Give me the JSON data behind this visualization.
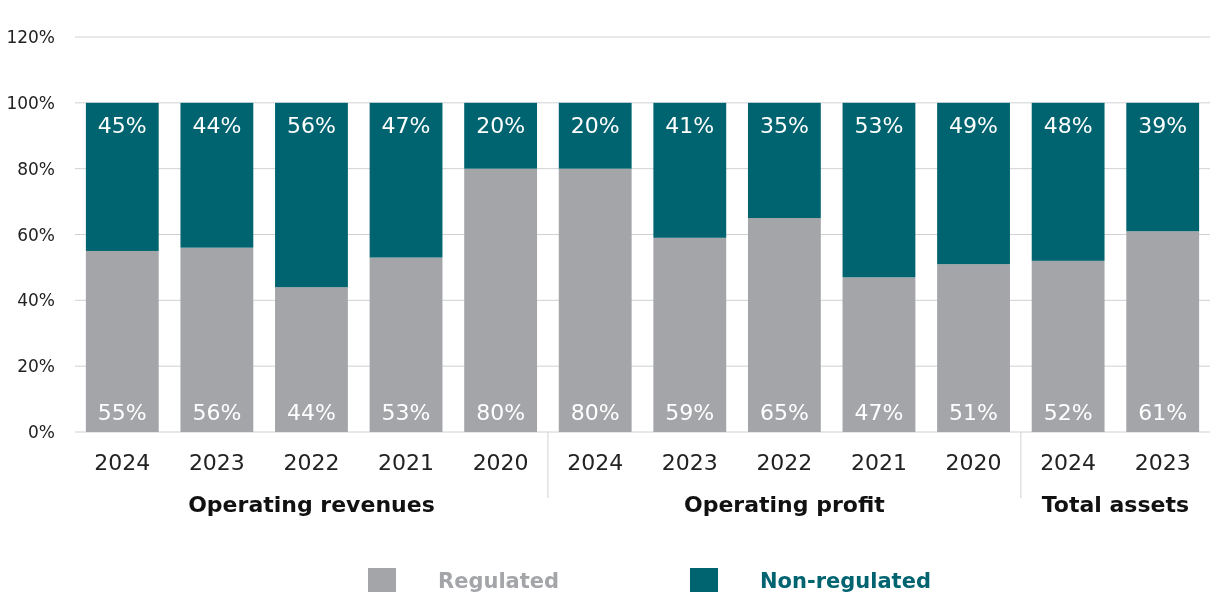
{
  "chart_data": [
    {
      "type": "bar",
      "stacked": true,
      "xlabel": "Operating revenues",
      "categories": [
        "2024",
        "2023",
        "2022",
        "2021",
        "2020"
      ],
      "ylim": [
        0,
        120
      ],
      "yticks": [
        {
          "value": 0,
          "label": "0%"
        },
        {
          "value": 20,
          "label": "20%"
        },
        {
          "value": 40,
          "label": "40%"
        },
        {
          "value": 60,
          "label": "60%"
        },
        {
          "value": 80,
          "label": "80%"
        },
        {
          "value": 100,
          "label": "100%"
        },
        {
          "value": 120,
          "label": "120%"
        }
      ],
      "grid": "y",
      "legend": "bottom",
      "series": [
        {
          "name": "Regulated",
          "color": "#a3a5a8",
          "values": [
            55,
            56,
            44,
            53,
            80
          ],
          "value_labels": [
            "55%",
            "56%",
            "44%",
            "53%",
            "80%"
          ]
        },
        {
          "name": "Non-regulated",
          "color": "#006470",
          "values": [
            45,
            44,
            56,
            47,
            20
          ],
          "value_labels": [
            "45%",
            "44%",
            "56%",
            "47%",
            "20%"
          ]
        }
      ]
    },
    {
      "type": "bar",
      "stacked": true,
      "xlabel": "Operating profit",
      "categories": [
        "2024",
        "2023",
        "2022",
        "2021",
        "2020"
      ],
      "ylim": [
        0,
        120
      ],
      "yticks": [
        0,
        20,
        40,
        60,
        80,
        100,
        120
      ],
      "grid": "y",
      "tick_labels": "x",
      "series": [
        {
          "color": "#a3a5a8",
          "values": [
            80,
            59,
            65,
            47,
            51
          ],
          "value_labels": [
            "80%",
            "59%",
            "65%",
            "47%",
            "51%"
          ]
        },
        {
          "color": "#006470",
          "values": [
            20,
            41,
            35,
            53,
            49
          ],
          "value_labels": [
            "20%",
            "41%",
            "35%",
            "53%",
            "49%"
          ]
        }
      ]
    },
    {
      "type": "bar",
      "stacked": true,
      "xlabel": "Total assets",
      "categories": [
        "2024",
        "2023"
      ],
      "ylim": [
        0,
        120
      ],
      "yticks": [
        0,
        20,
        40,
        60,
        80,
        100,
        120
      ],
      "grid": "y",
      "tick_labels": "x",
      "series": [
        {
          "color": "#a3a5a8",
          "values": [
            52,
            61
          ],
          "value_labels": [
            "52%",
            "61%"
          ]
        },
        {
          "color": "#006470",
          "values": [
            48,
            39
          ],
          "value_labels": [
            "48%",
            "39%"
          ]
        }
      ]
    }
  ]
}
